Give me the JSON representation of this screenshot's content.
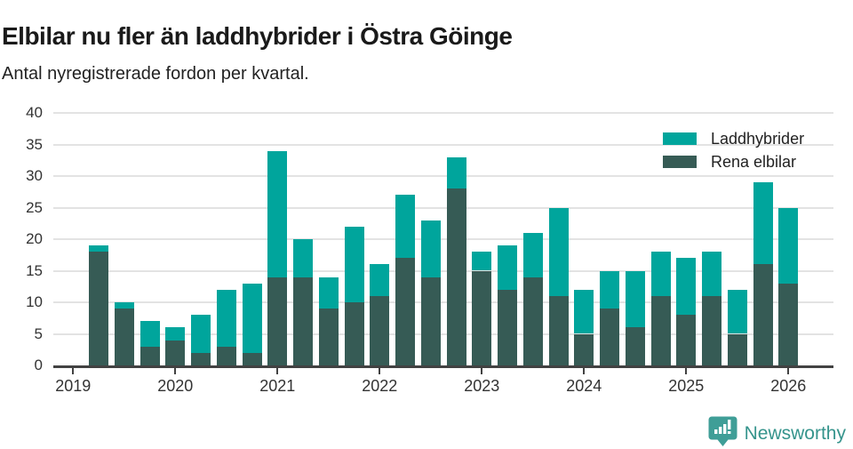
{
  "header": {
    "title": "Elbilar nu fler än laddhybrider i Östra Göinge",
    "subtitle": "Antal nyregistrerade fordon per kvartal."
  },
  "legend": {
    "items": [
      {
        "label": "Laddhybrider",
        "color": "#00a59c"
      },
      {
        "label": "Rena elbilar",
        "color": "#365b55"
      }
    ]
  },
  "footer": {
    "brand": "Newsworthy",
    "brand_color": "#35948c",
    "icon": "newsworthy-bar-chart-bubble-icon",
    "icon_color": "#3f9e97"
  },
  "chart_data": {
    "type": "bar",
    "stacked": true,
    "title": "Elbilar nu fler än laddhybrider i Östra Göinge",
    "subtitle": "Antal nyregistrerade fordon per kvartal.",
    "xlabel": "",
    "ylabel": "",
    "ylim": [
      0,
      40
    ],
    "yticks": [
      0,
      5,
      10,
      15,
      20,
      25,
      30,
      35,
      40
    ],
    "x_year_ticks": [
      "2019",
      "2020",
      "2021",
      "2022",
      "2023",
      "2024",
      "2025",
      "2026"
    ],
    "grid": "horizontal",
    "legend_position": "top-right",
    "categories": [
      "2019 Q2",
      "2019 Q3",
      "2019 Q4",
      "2020 Q1",
      "2020 Q2",
      "2020 Q3",
      "2020 Q4",
      "2021 Q1",
      "2021 Q2",
      "2021 Q3",
      "2021 Q4",
      "2022 Q1",
      "2022 Q2",
      "2022 Q3",
      "2022 Q4",
      "2023 Q1",
      "2023 Q2",
      "2023 Q3",
      "2023 Q4",
      "2024 Q1",
      "2024 Q2",
      "2024 Q3",
      "2024 Q4",
      "2025 Q1",
      "2025 Q2",
      "2025 Q3",
      "2025 Q4",
      "2026 Q1"
    ],
    "series": [
      {
        "name": "Rena elbilar",
        "color": "#365b55",
        "stack_position": "bottom",
        "values": [
          18,
          9,
          3,
          4,
          2,
          3,
          2,
          14,
          14,
          9,
          10,
          11,
          17,
          14,
          28,
          15,
          12,
          14,
          11,
          5,
          9,
          6,
          11,
          8,
          11,
          5,
          16,
          13
        ]
      },
      {
        "name": "Laddhybrider",
        "color": "#00a59c",
        "stack_position": "top",
        "values": [
          1,
          1,
          4,
          2,
          6,
          9,
          11,
          20,
          6,
          5,
          12,
          5,
          10,
          9,
          5,
          3,
          7,
          7,
          14,
          7,
          6,
          9,
          7,
          9,
          7,
          7,
          13,
          12
        ]
      }
    ],
    "stacked_totals": [
      19,
      10,
      7,
      6,
      8,
      12,
      13,
      34,
      20,
      14,
      22,
      16,
      27,
      23,
      33,
      18,
      19,
      21,
      25,
      12,
      15,
      15,
      18,
      17,
      18,
      12,
      29,
      25
    ]
  },
  "style": {
    "grid_color": "#e3e3e3",
    "axis_color": "#424242",
    "tick_label_color": "#333333",
    "title_color": "#1a1a1a"
  }
}
